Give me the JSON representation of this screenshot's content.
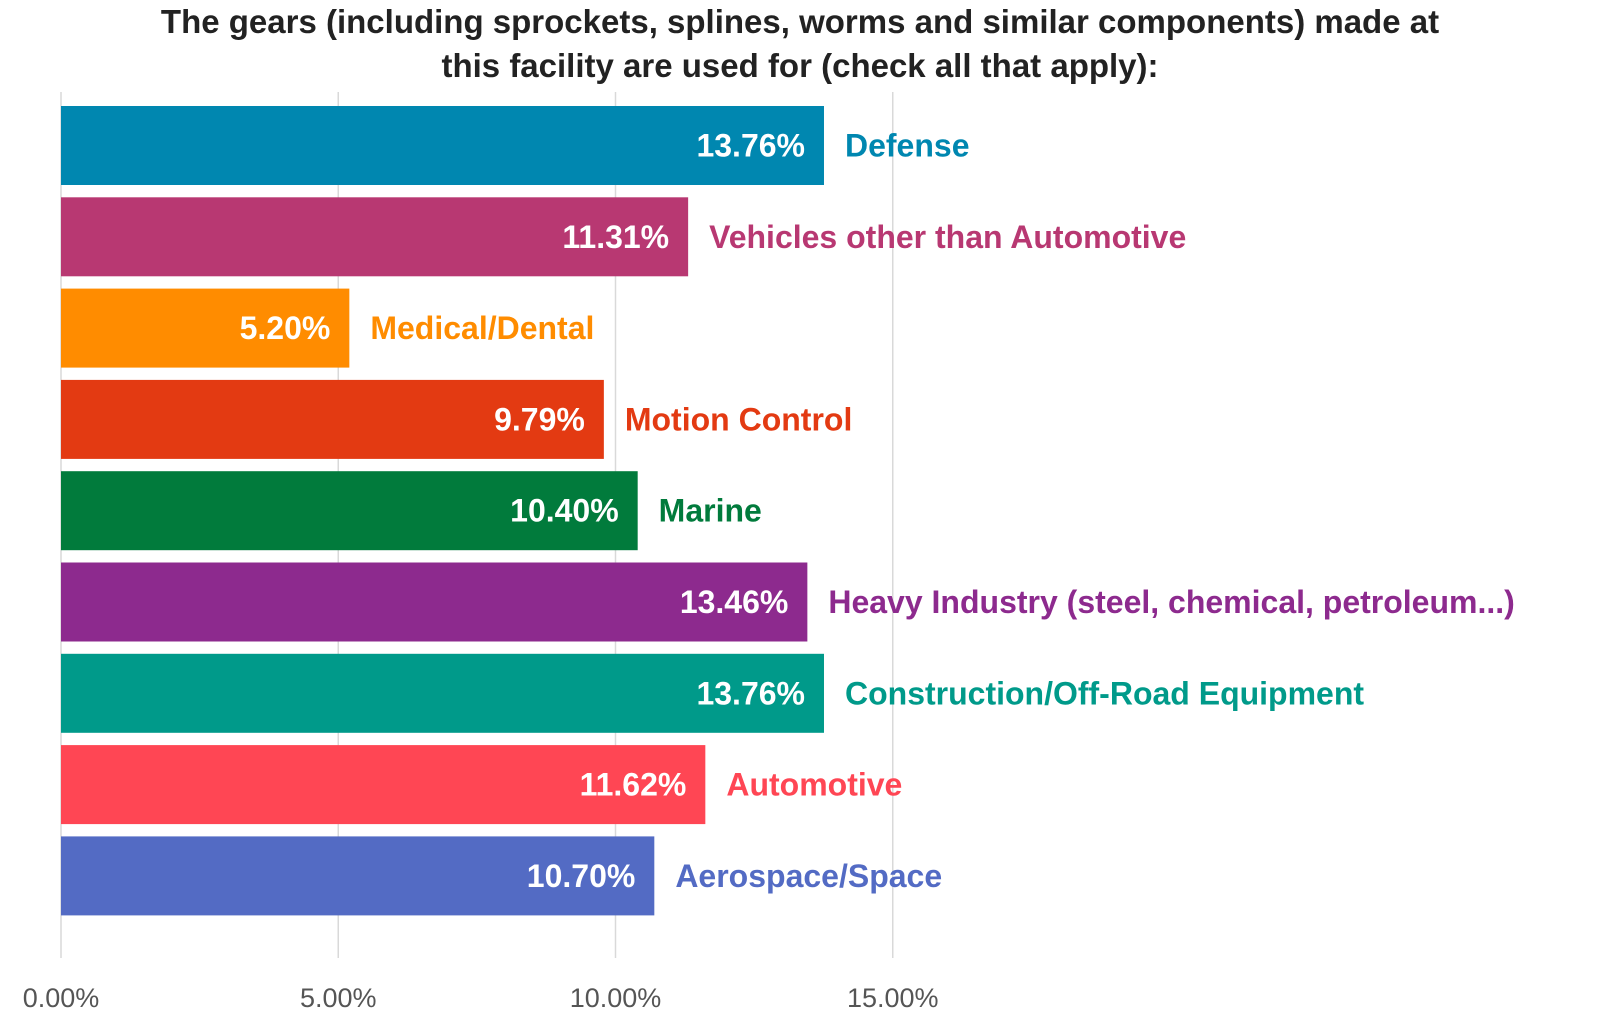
{
  "chart_data": {
    "type": "bar",
    "orientation": "horizontal",
    "title_lines": [
      "The gears (including sprockets, splines, worms and similar components) made at",
      "this facility are used for (check all that apply):"
    ],
    "categories": [
      "Defense",
      "Vehicles other than Automotive",
      "Medical/Dental",
      "Motion Control",
      "Marine",
      "Heavy Industry (steel, chemical, petroleum...)",
      "Construction/Off-Road Equipment",
      "Automotive",
      "Aerospace/Space"
    ],
    "values": [
      13.76,
      11.31,
      5.2,
      9.79,
      10.4,
      13.46,
      13.76,
      11.62,
      10.7
    ],
    "value_labels": [
      "13.76%",
      "11.31%",
      "5.20%",
      "9.79%",
      "10.40%",
      "13.46%",
      "13.76%",
      "11.62%",
      "10.70%"
    ],
    "colors": [
      "#0087b0",
      "#b83872",
      "#ff8c00",
      "#e33a12",
      "#017b3c",
      "#8d2a8e",
      "#009a8a",
      "#ff4654",
      "#536bc4"
    ],
    "xlim": [
      0,
      15
    ],
    "xticks": [
      0,
      5,
      10,
      15
    ],
    "xtick_labels": [
      "0.00%",
      "5.00%",
      "10.00%",
      "15.00%"
    ],
    "grid": true,
    "xlabel": "",
    "ylabel": ""
  }
}
